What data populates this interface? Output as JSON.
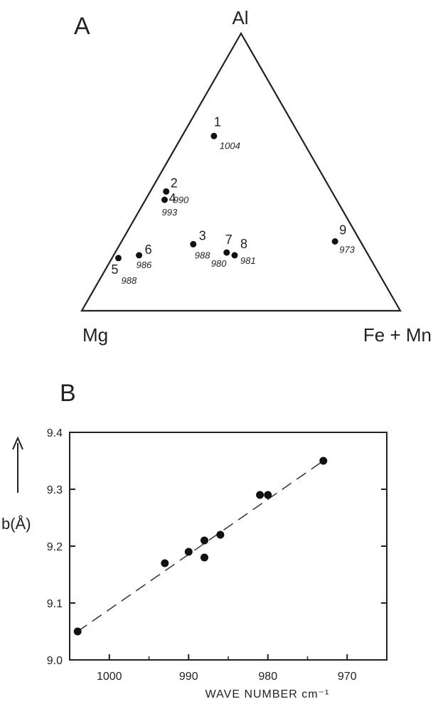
{
  "panel_a": {
    "letter": "A",
    "vertices": {
      "top": "Al",
      "left": "Mg",
      "right": "Fe + Mn"
    },
    "points": [
      {
        "id": "1",
        "wave": "1004",
        "mg": 0.27,
        "al": 0.63,
        "fe": 0.1
      },
      {
        "id": "2",
        "wave": "990",
        "mg": 0.52,
        "al": 0.43,
        "fe": 0.05
      },
      {
        "id": "4",
        "wave": "993",
        "mg": 0.54,
        "al": 0.4,
        "fe": 0.06
      },
      {
        "id": "3",
        "wave": "988",
        "mg": 0.53,
        "al": 0.24,
        "fe": 0.23
      },
      {
        "id": "7",
        "wave": "980",
        "mg": 0.44,
        "al": 0.21,
        "fe": 0.35
      },
      {
        "id": "8",
        "wave": "981",
        "mg": 0.42,
        "al": 0.2,
        "fe": 0.38
      },
      {
        "id": "6",
        "wave": "986",
        "mg": 0.72,
        "al": 0.2,
        "fe": 0.08
      },
      {
        "id": "5",
        "wave": "988",
        "mg": 0.79,
        "al": 0.19,
        "fe": 0.02
      },
      {
        "id": "9",
        "wave": "973",
        "mg": 0.08,
        "al": 0.25,
        "fe": 0.67
      }
    ]
  },
  "panel_b": {
    "letter": "B",
    "ylabel": "b(Å)",
    "xlabel": "WAVE NUMBER  cm⁻¹",
    "xticks": [
      1000,
      990,
      980,
      970
    ],
    "yticks": [
      "9.0",
      "9.1",
      "9.2",
      "9.3",
      "9.4"
    ]
  },
  "chart_data": [
    {
      "type": "ternary",
      "axes": [
        "Al",
        "Mg",
        "Fe + Mn"
      ],
      "points": [
        {
          "label": "1",
          "annotation": "1004",
          "Mg": 0.27,
          "Al": 0.63,
          "Fe+Mn": 0.1
        },
        {
          "label": "2",
          "annotation": "990",
          "Mg": 0.52,
          "Al": 0.43,
          "Fe+Mn": 0.05
        },
        {
          "label": "4",
          "annotation": "993",
          "Mg": 0.54,
          "Al": 0.4,
          "Fe+Mn": 0.06
        },
        {
          "label": "3",
          "annotation": "988",
          "Mg": 0.53,
          "Al": 0.24,
          "Fe+Mn": 0.23
        },
        {
          "label": "7",
          "annotation": "980",
          "Mg": 0.44,
          "Al": 0.21,
          "Fe+Mn": 0.35
        },
        {
          "label": "8",
          "annotation": "981",
          "Mg": 0.42,
          "Al": 0.2,
          "Fe+Mn": 0.38
        },
        {
          "label": "6",
          "annotation": "986",
          "Mg": 0.72,
          "Al": 0.2,
          "Fe+Mn": 0.08
        },
        {
          "label": "5",
          "annotation": "988",
          "Mg": 0.79,
          "Al": 0.19,
          "Fe+Mn": 0.02
        },
        {
          "label": "9",
          "annotation": "973",
          "Mg": 0.08,
          "Al": 0.25,
          "Fe+Mn": 0.67
        }
      ]
    },
    {
      "type": "scatter",
      "xlabel": "WAVE NUMBER  cm⁻¹",
      "ylabel": "b(Å)",
      "xlim": [
        1005,
        965
      ],
      "ylim": [
        9.0,
        9.4
      ],
      "x_reversed": true,
      "grid": false,
      "points": [
        {
          "x": 1004,
          "y": 9.05
        },
        {
          "x": 993,
          "y": 9.17
        },
        {
          "x": 990,
          "y": 9.19
        },
        {
          "x": 988,
          "y": 9.21
        },
        {
          "x": 988,
          "y": 9.18
        },
        {
          "x": 986,
          "y": 9.22
        },
        {
          "x": 981,
          "y": 9.29
        },
        {
          "x": 980,
          "y": 9.29
        },
        {
          "x": 973,
          "y": 9.35
        }
      ],
      "fit_line": {
        "style": "dashed",
        "from": {
          "x": 1004,
          "y": 9.05
        },
        "to": {
          "x": 973,
          "y": 9.35
        }
      }
    }
  ]
}
